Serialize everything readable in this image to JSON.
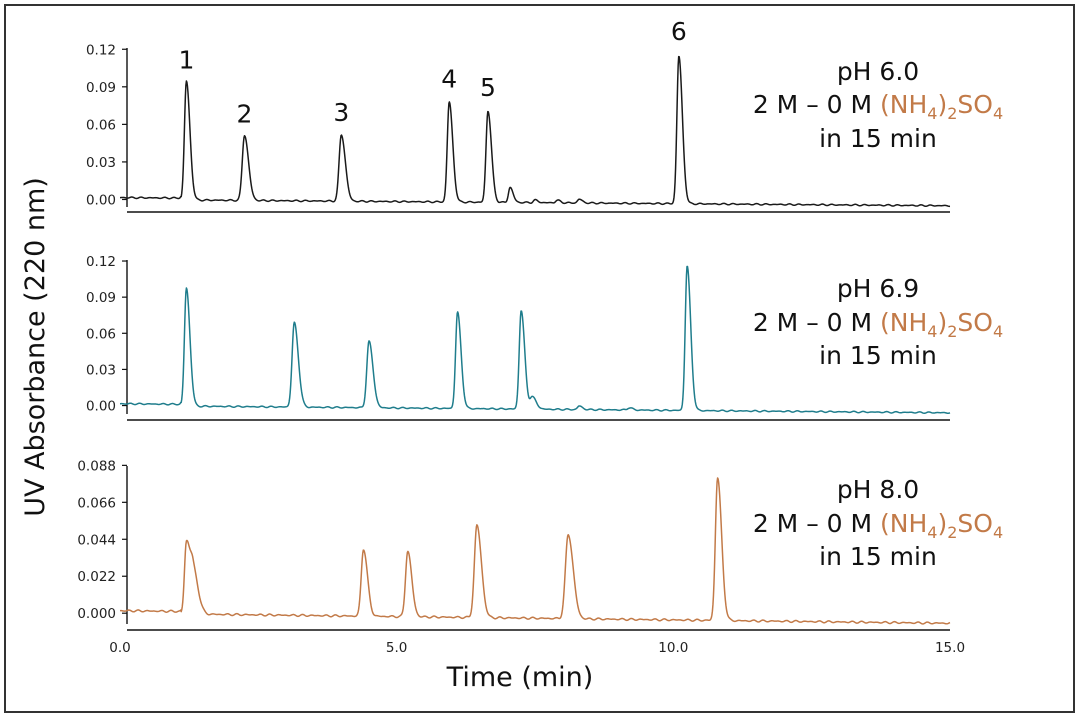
{
  "chart_data": {
    "type": "line",
    "xlabel": "Time (min)",
    "ylabel": "UV Absorbance (220 nm)",
    "xlim": [
      0,
      15
    ],
    "xticks": [
      "0.0",
      "5.0",
      "10.0",
      "15.0"
    ],
    "colors": {
      "ph60": "#1a1a1a",
      "ph69": "#1f7d8c",
      "ph80": "#c27a48",
      "salt": "#c27a48"
    },
    "panels": [
      {
        "id": "ph60",
        "title": "pH 6.0",
        "condition_prefix": "2 M – 0 M",
        "salt": {
          "open": "(NH",
          "sub1": "4",
          "close": ")",
          "sub2": "2",
          "rest": "SO",
          "sub3": "4"
        },
        "duration": "in 15 min",
        "ylim": [
          -0.01,
          0.125
        ],
        "yticks": [
          "0.00",
          "0.03",
          "0.06",
          "0.09",
          "0.12"
        ],
        "ytick_values": [
          0,
          0.03,
          0.06,
          0.09,
          0.12
        ],
        "baseline_start": 0.0,
        "baseline_end": -0.005,
        "peaks": [
          {
            "label": "1",
            "t": 1.2,
            "h": 0.095,
            "w": 0.035
          },
          {
            "label": "2",
            "t": 2.25,
            "h": 0.052,
            "w": 0.04
          },
          {
            "label": "3",
            "t": 4.0,
            "h": 0.053,
            "w": 0.04
          },
          {
            "label": "4",
            "t": 5.95,
            "h": 0.08,
            "w": 0.035
          },
          {
            "label": "5",
            "t": 6.65,
            "h": 0.073,
            "w": 0.035
          },
          {
            "label": "",
            "t": 7.05,
            "h": 0.012,
            "w": 0.03
          },
          {
            "label": "",
            "t": 7.5,
            "h": 0.002,
            "w": 0.03
          },
          {
            "label": "",
            "t": 7.9,
            "h": 0.002,
            "w": 0.03
          },
          {
            "label": "",
            "t": 8.3,
            "h": 0.003,
            "w": 0.03
          },
          {
            "label": "6",
            "t": 10.1,
            "h": 0.118,
            "w": 0.035
          }
        ]
      },
      {
        "id": "ph69",
        "title": "pH 6.9",
        "condition_prefix": "2 M – 0 M",
        "salt": {
          "open": "(NH",
          "sub1": "4",
          "close": ")",
          "sub2": "2",
          "rest": "SO",
          "sub3": "4"
        },
        "duration": "in 15 min",
        "ylim": [
          -0.012,
          0.125
        ],
        "yticks": [
          "0.00",
          "0.03",
          "0.06",
          "0.09",
          "0.12"
        ],
        "ytick_values": [
          0,
          0.03,
          0.06,
          0.09,
          0.12
        ],
        "baseline_start": 0.0,
        "baseline_end": -0.006,
        "peaks": [
          {
            "label": "",
            "t": 1.2,
            "h": 0.098,
            "w": 0.035
          },
          {
            "label": "",
            "t": 3.15,
            "h": 0.07,
            "w": 0.04
          },
          {
            "label": "",
            "t": 4.5,
            "h": 0.055,
            "w": 0.04
          },
          {
            "label": "",
            "t": 6.1,
            "h": 0.08,
            "w": 0.035
          },
          {
            "label": "",
            "t": 7.25,
            "h": 0.082,
            "w": 0.035
          },
          {
            "label": "",
            "t": 7.45,
            "h": 0.01,
            "w": 0.04
          },
          {
            "label": "",
            "t": 8.3,
            "h": 0.003,
            "w": 0.03
          },
          {
            "label": "",
            "t": 9.2,
            "h": 0.002,
            "w": 0.03
          },
          {
            "label": "",
            "t": 10.25,
            "h": 0.12,
            "w": 0.035
          }
        ]
      },
      {
        "id": "ph80",
        "title": "pH 8.0",
        "condition_prefix": "2 M – 0 M",
        "salt": {
          "open": "(NH",
          "sub1": "4",
          "close": ")",
          "sub2": "2",
          "rest": "SO",
          "sub3": "4"
        },
        "duration": "in 15 min",
        "ylim": [
          -0.01,
          0.09
        ],
        "yticks": [
          "0.000",
          "0.022",
          "0.044",
          "0.066",
          "0.088"
        ],
        "ytick_values": [
          0,
          0.022,
          0.044,
          0.066,
          0.088
        ],
        "baseline_start": 0.0,
        "baseline_end": -0.006,
        "peaks": [
          {
            "label": "",
            "t": 1.2,
            "h": 0.042,
            "w": 0.035
          },
          {
            "label": "",
            "t": 1.32,
            "h": 0.026,
            "w": 0.05
          },
          {
            "label": "",
            "t": 4.4,
            "h": 0.04,
            "w": 0.04
          },
          {
            "label": "",
            "t": 5.2,
            "h": 0.039,
            "w": 0.04
          },
          {
            "label": "",
            "t": 6.45,
            "h": 0.055,
            "w": 0.045
          },
          {
            "label": "",
            "t": 8.1,
            "h": 0.05,
            "w": 0.05
          },
          {
            "label": "",
            "t": 10.8,
            "h": 0.085,
            "w": 0.04
          }
        ]
      }
    ]
  }
}
